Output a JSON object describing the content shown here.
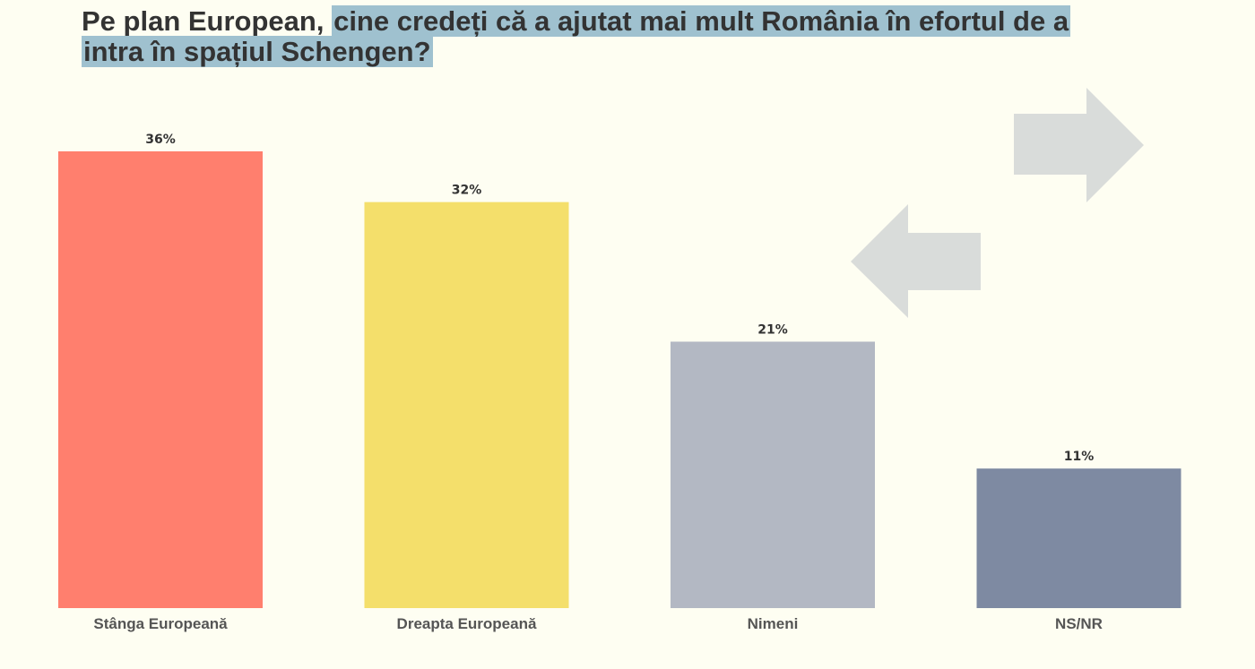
{
  "chart_data": {
    "type": "bar",
    "title": [
      "Pe plan European,",
      "cine credeți că a ajutat mai mult România în efortul de a intra în spațiul Schengen?"
    ],
    "categories": [
      "Stânga Europeană",
      "Dreapta Europeană",
      "Nimeni",
      "NS/NR"
    ],
    "values": [
      36,
      32,
      21,
      11
    ],
    "value_labels": [
      "36%",
      "32%",
      "21%",
      "11%"
    ],
    "colors": [
      "#ff7f6e",
      "#f4df6b",
      "#b3b8c3",
      "#7e8aa2"
    ]
  }
}
